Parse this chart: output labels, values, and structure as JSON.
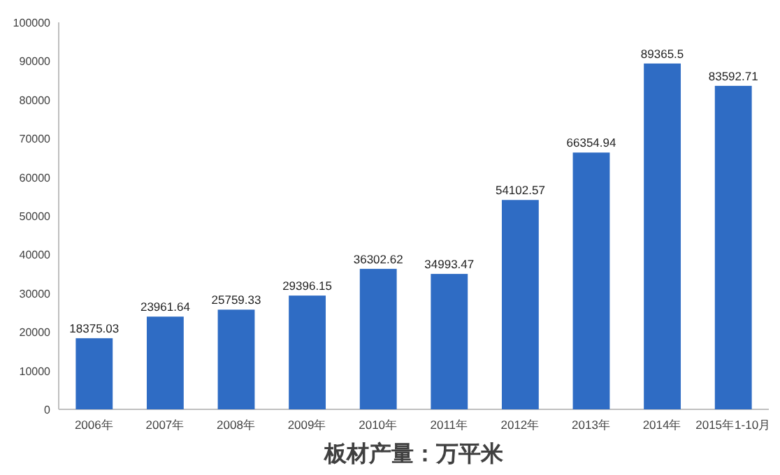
{
  "chart_data": {
    "type": "bar",
    "title": "板材产量：万平米",
    "categories": [
      "2006年",
      "2007年",
      "2008年",
      "2009年",
      "2010年",
      "2011年",
      "2012年",
      "2013年",
      "2014年",
      "2015年1-10月"
    ],
    "values": [
      18375.03,
      23961.64,
      25759.33,
      29396.15,
      36302.62,
      34993.47,
      54102.57,
      66354.94,
      89365.5,
      83592.71
    ],
    "color": "#2f6cc4",
    "ylim": [
      0,
      100000
    ],
    "yticks": [
      0,
      10000,
      20000,
      30000,
      40000,
      50000,
      60000,
      70000,
      80000,
      90000,
      100000
    ],
    "data_labels": true
  }
}
